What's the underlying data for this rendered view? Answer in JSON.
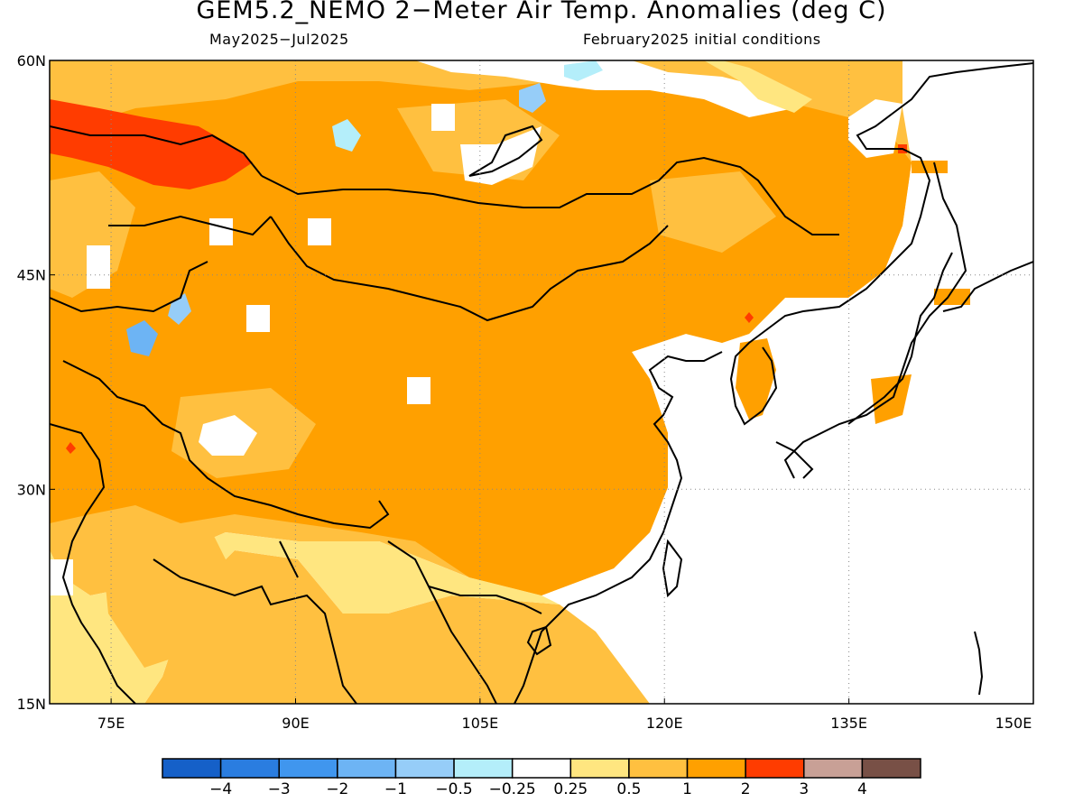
{
  "title": "GEM5.2_NEMO 2−Meter Air Temp. Anomalies (deg C)",
  "subtitle_period": "May2025−Jul2025",
  "subtitle_init": "February2025 initial conditions",
  "axes": {
    "lon_min": 70,
    "lon_max": 150,
    "lat_min": 15,
    "lat_max": 60,
    "x_ticks": [
      {
        "value": 75,
        "label": "75E"
      },
      {
        "value": 90,
        "label": "90E"
      },
      {
        "value": 105,
        "label": "105E"
      },
      {
        "value": 120,
        "label": "120E"
      },
      {
        "value": 135,
        "label": "135E"
      },
      {
        "value": 150,
        "label": "150E"
      }
    ],
    "y_ticks": [
      {
        "value": 15,
        "label": "15N"
      },
      {
        "value": 30,
        "label": "30N"
      },
      {
        "value": 45,
        "label": "45N"
      },
      {
        "value": 60,
        "label": "60N"
      }
    ],
    "grid": "dotted"
  },
  "colorbar": {
    "colors": [
      "#1560c8",
      "#2a7de0",
      "#4096ee",
      "#6db4f4",
      "#96cdf8",
      "#b4eefa",
      "#ffffff",
      "#ffe680",
      "#ffc040",
      "#ffa000",
      "#ff3c00",
      "#c8a096",
      "#785046"
    ],
    "labels": [
      "−4",
      "−3",
      "−2",
      "−1",
      "−0.5",
      "−0.25",
      "0.25",
      "0.5",
      "1",
      "2",
      "3",
      "4"
    ]
  },
  "colors": {
    "anomaly_0_5_1": "#ffc040",
    "anomaly_1_2": "#ffa000",
    "anomaly_2_3": "#ff3c00",
    "anomaly_025_05": "#ffe680",
    "anomaly_neg": "#96cdf8",
    "anomaly_neg_light": "#b4eefa"
  }
}
